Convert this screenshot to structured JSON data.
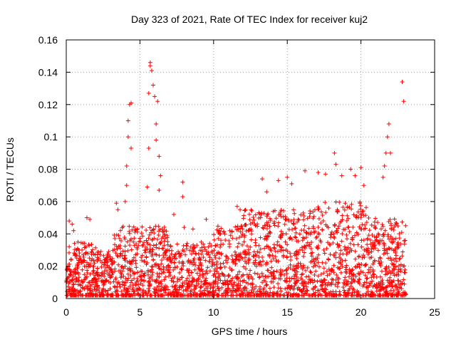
{
  "chart_data": {
    "type": "scatter",
    "title": "Day 323 of 2021, Rate Of TEC Index for receiver kuj2",
    "xlabel": "GPS time / hours",
    "ylabel": "ROTI / TECUs",
    "xlim": [
      0,
      25
    ],
    "ylim": [
      0,
      0.16
    ],
    "x_ticks": [
      0,
      5,
      10,
      15,
      20,
      25
    ],
    "x_tick_labels": [
      "0",
      "5",
      "10",
      "15",
      "20",
      "25"
    ],
    "y_ticks": [
      0,
      0.02,
      0.04,
      0.06,
      0.08,
      0.1,
      0.12,
      0.14,
      0.16
    ],
    "y_tick_labels": [
      "0",
      "0.02",
      "0.04",
      "0.06",
      "0.08",
      "0.1",
      "0.12",
      "0.14",
      "0.16"
    ],
    "grid": true,
    "marker": "+",
    "color": "#ff0000",
    "series": [
      {
        "name": "ROTI",
        "points": [
          [
            0.2,
            0.048
          ],
          [
            0.4,
            0.046
          ],
          [
            0.5,
            0.042
          ],
          [
            1.4,
            0.05
          ],
          [
            1.6,
            0.049
          ],
          [
            3.4,
            0.059
          ],
          [
            3.5,
            0.055
          ],
          [
            4.0,
            0.06
          ],
          [
            4.1,
            0.07
          ],
          [
            4.1,
            0.082
          ],
          [
            4.2,
            0.1
          ],
          [
            4.2,
            0.11
          ],
          [
            4.3,
            0.12
          ],
          [
            4.4,
            0.121
          ],
          [
            4.4,
            0.093
          ],
          [
            5.5,
            0.069
          ],
          [
            5.6,
            0.093
          ],
          [
            5.6,
            0.127
          ],
          [
            5.7,
            0.146
          ],
          [
            5.7,
            0.144
          ],
          [
            5.8,
            0.141
          ],
          [
            5.9,
            0.132
          ],
          [
            6.0,
            0.125
          ],
          [
            6.1,
            0.108
          ],
          [
            6.1,
            0.098
          ],
          [
            6.2,
            0.122
          ],
          [
            6.3,
            0.088
          ],
          [
            6.3,
            0.067
          ],
          [
            6.4,
            0.076
          ],
          [
            7.3,
            0.052
          ],
          [
            7.9,
            0.072
          ],
          [
            7.9,
            0.063
          ],
          [
            8.0,
            0.044
          ],
          [
            8.6,
            0.043
          ],
          [
            9.5,
            0.049
          ],
          [
            11.6,
            0.057
          ],
          [
            11.8,
            0.055
          ],
          [
            13.3,
            0.074
          ],
          [
            13.6,
            0.066
          ],
          [
            14.4,
            0.073
          ],
          [
            15.0,
            0.075
          ],
          [
            15.3,
            0.071
          ],
          [
            16.2,
            0.079
          ],
          [
            17.1,
            0.078
          ],
          [
            17.6,
            0.077
          ],
          [
            18.2,
            0.09
          ],
          [
            18.3,
            0.083
          ],
          [
            18.7,
            0.076
          ],
          [
            19.3,
            0.08
          ],
          [
            19.6,
            0.076
          ],
          [
            20.0,
            0.081
          ],
          [
            20.2,
            0.07
          ],
          [
            21.5,
            0.075
          ],
          [
            21.6,
            0.082
          ],
          [
            21.7,
            0.09
          ],
          [
            21.8,
            0.1
          ],
          [
            21.9,
            0.108
          ],
          [
            22.0,
            0.09
          ],
          [
            22.8,
            0.134
          ],
          [
            22.9,
            0.122
          ]
        ]
      }
    ]
  }
}
